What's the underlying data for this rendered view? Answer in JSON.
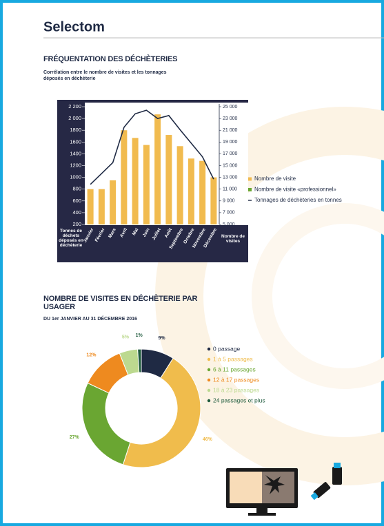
{
  "header": {
    "logo": "Selectom"
  },
  "chart_data": [
    {
      "type": "bar",
      "title": "FRÉQUENTATION DES DÉCHÈTERIES",
      "subtitle": "Corrélation entre le nombre de visites et les tonnages déposés en déchèterie",
      "ylabel": "Tonnes de déchets déposés en déchèterie",
      "y2label": "Nombre de visites",
      "categories": [
        "Janvier",
        "Février",
        "Mars",
        "Avril",
        "Mai",
        "Juin",
        "Juillet",
        "Août",
        "Septembre",
        "Octobre",
        "Novembre",
        "Décembre"
      ],
      "series": [
        {
          "name": "Nombre de visite",
          "color": "#f1bb4f",
          "axis": "y2",
          "type": "bar",
          "values": [
            11000,
            11000,
            12500,
            21000,
            19700,
            18500,
            23700,
            20200,
            18300,
            16200,
            15800,
            13000
          ]
        },
        {
          "name": "Nombre de visite «professionnel»",
          "color": "#6aa632",
          "axis": "y2",
          "type": "bar",
          "values": [
            null,
            null,
            null,
            null,
            null,
            null,
            null,
            null,
            null,
            null,
            null,
            null
          ]
        },
        {
          "name": "Tonnages de déchèteries en tonnes",
          "color": "#1f2a44",
          "type": "line",
          "values": [
            880,
            1065,
            1250,
            1850,
            2080,
            2140,
            2000,
            2050,
            1810,
            1580,
            1350,
            970
          ]
        }
      ],
      "ylim": [
        200,
        2200
      ],
      "yticks": [
        200,
        400,
        600,
        800,
        1000,
        1200,
        1400,
        1600,
        1800,
        {
          "value": 2000,
          "label": "2 000"
        },
        {
          "value": 2200,
          "label": "2 200"
        }
      ],
      "y2lim": [
        5000,
        25000
      ],
      "y2ticks": [
        {
          "value": 5000,
          "label": "5 000"
        },
        {
          "value": 7000,
          "label": "7 000"
        },
        {
          "value": 9000,
          "label": "9 000"
        },
        {
          "value": 11000,
          "label": "11 000"
        },
        {
          "value": 13000,
          "label": "13 000"
        },
        {
          "value": 15000,
          "label": "15 000"
        },
        {
          "value": 17000,
          "label": "17 000"
        },
        {
          "value": 19000,
          "label": "19 000"
        },
        {
          "value": 21000,
          "label": "21 000"
        },
        {
          "value": 23000,
          "label": "23 000"
        },
        {
          "value": 25000,
          "label": "25 000"
        }
      ],
      "legend": "right"
    },
    {
      "type": "pie",
      "title": "NOMBRE DE VISITES EN DÉCHÈTERIE PAR USAGER",
      "subtitle": "DU 1er JANVIER AU 31 DÉCEMBRE 2016",
      "donut": true,
      "categories": [
        "0 passage",
        "1 à 5 passages",
        "6 à 11 passages",
        "12 à 17 passages",
        "18 à 23 passages",
        "24 passages et plus"
      ],
      "values": [
        9,
        46,
        27,
        12,
        5,
        1
      ],
      "value_labels": [
        "9%",
        "46%",
        "27%",
        "12%",
        "5%",
        "1%"
      ],
      "colors": [
        "#1f2a44",
        "#f0bc4c",
        "#6aa632",
        "#ee8a1f",
        "#bcd98f",
        "#1e5a3c"
      ],
      "legend": "right"
    }
  ]
}
